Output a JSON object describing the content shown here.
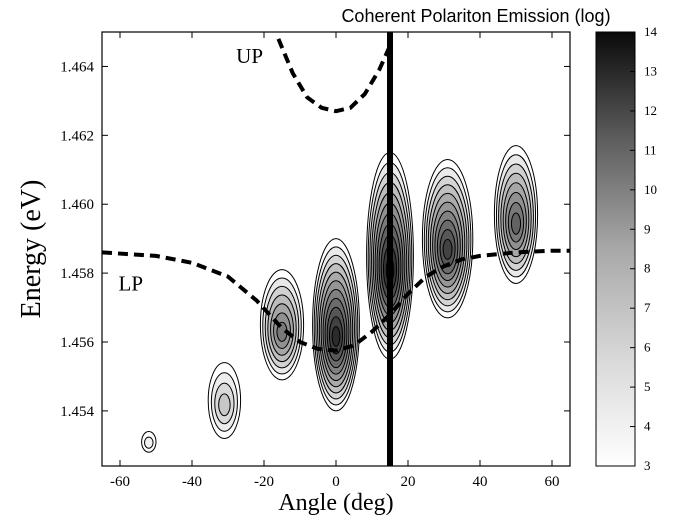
{
  "chart_data": {
    "type": "heatmap",
    "title": "Coherent Polariton Emission (log)",
    "xlabel": "Angle (deg)",
    "ylabel": "Energy (eV)",
    "xlim": [
      -65,
      65
    ],
    "ylim": [
      1.4524,
      1.465
    ],
    "x_ticks": [
      -60,
      -40,
      -20,
      0,
      20,
      40,
      60
    ],
    "x_tick_labels": [
      "-60",
      "-40",
      "-20",
      "0",
      "20",
      "40",
      "60"
    ],
    "y_ticks": [
      1.454,
      1.456,
      1.458,
      1.46,
      1.462,
      1.464
    ],
    "y_tick_labels": [
      "1.454",
      "1.456",
      "1.458",
      "1.460",
      "1.462",
      "1.464"
    ],
    "grid": false,
    "colorbar": {
      "range": [
        3,
        14
      ],
      "ticks": [
        3,
        4,
        5,
        6,
        7,
        8,
        9,
        10,
        11,
        12,
        13,
        14
      ],
      "tick_labels": [
        "3",
        "4",
        "5",
        "6",
        "7",
        "8",
        "9",
        "10",
        "11",
        "12",
        "13",
        "14"
      ],
      "colormap": "white-to-black grayscale"
    },
    "annotations": [
      {
        "text": "UP",
        "x": -24,
        "y": 1.4641
      },
      {
        "text": "LP",
        "x": -57,
        "y": 1.4575
      }
    ],
    "vertical_line": {
      "x": 15,
      "color": "#000000"
    },
    "series": [
      {
        "style": "dashed",
        "label": "UP",
        "x": [
          -16,
          -12,
          -8,
          -4,
          0,
          4,
          8,
          12,
          15
        ],
        "y": [
          1.4648,
          1.4638,
          1.4631,
          1.4628,
          1.4627,
          1.4628,
          1.4632,
          1.4639,
          1.4646
        ]
      },
      {
        "style": "dashed",
        "label": "LP",
        "x": [
          -65,
          -50,
          -40,
          -30,
          -22,
          -15,
          -10,
          -5,
          0,
          5,
          10,
          15,
          20,
          25,
          30,
          35,
          40,
          50,
          60,
          65
        ],
        "y": [
          1.4586,
          1.4585,
          1.4583,
          1.4579,
          1.4572,
          1.4564,
          1.456,
          1.4558,
          1.45575,
          1.4559,
          1.4563,
          1.4568,
          1.4574,
          1.4579,
          1.4582,
          1.4584,
          1.4585,
          1.4586,
          1.45865,
          1.45865
        ]
      }
    ],
    "emission_peaks": [
      {
        "angle": -52,
        "energy": 1.4531,
        "width": 2.0,
        "height": 0.0003,
        "level": 3.6
      },
      {
        "angle": -31,
        "energy": 1.4543,
        "width": 4.5,
        "height": 0.0011,
        "level": 5.5
      },
      {
        "angle": -15,
        "energy": 1.4565,
        "width": 6.0,
        "height": 0.0016,
        "level": 9.0
      },
      {
        "angle": 0,
        "energy": 1.4565,
        "width": 6.5,
        "height": 0.0025,
        "level": 12.5
      },
      {
        "angle": 15,
        "energy": 1.4585,
        "width": 6.5,
        "height": 0.003,
        "level": 13.0
      },
      {
        "angle": 31,
        "energy": 1.459,
        "width": 7.0,
        "height": 0.0023,
        "level": 11.5
      },
      {
        "angle": 50,
        "energy": 1.4597,
        "width": 6.0,
        "height": 0.002,
        "level": 10.0
      }
    ]
  }
}
